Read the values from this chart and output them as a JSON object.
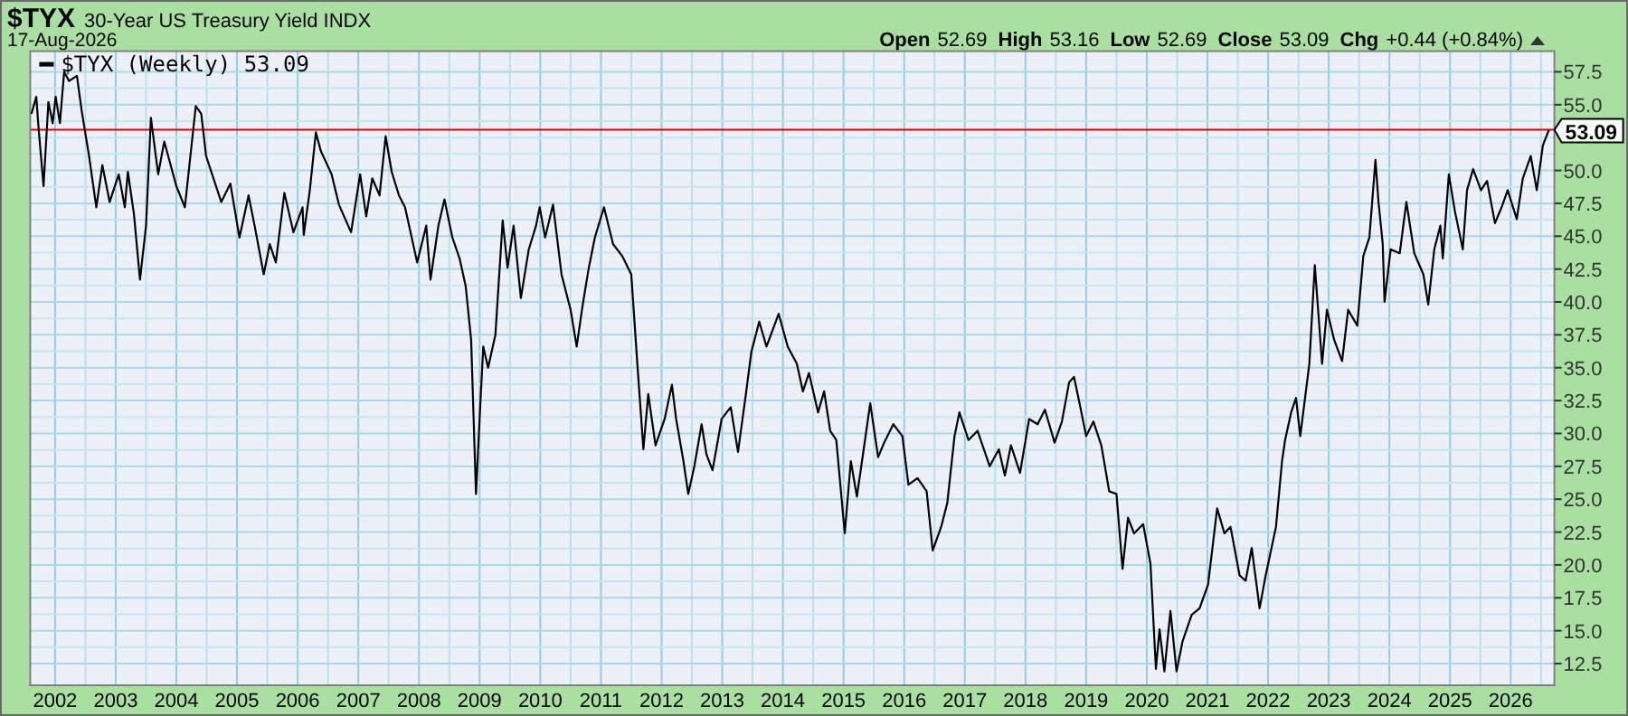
{
  "chart_data": {
    "type": "line",
    "title": "$TYX",
    "subtitle": "30-Year US Treasury Yield INDX",
    "annotations": [
      "17-Aug-2026",
      "Open",
      "52.69",
      "High",
      "53.16",
      "Low",
      "52.69",
      "Close",
      "53.09",
      "Chg",
      "+0.44 (+0.84%)"
    ],
    "legend": "top left",
    "grid": true,
    "xlim": [
      2001.59,
      2026.72
    ],
    "ylim": [
      10.85,
      59.07
    ],
    "xticks": [
      2002,
      {
        "value": 2002.5,
        "label": null
      },
      2003,
      {
        "value": 2003.5,
        "label": null
      },
      2004,
      {
        "value": 2004.5,
        "label": null
      },
      2005,
      {
        "value": 2005.5,
        "label": null
      },
      2006,
      {
        "value": 2006.5,
        "label": null
      },
      2007,
      {
        "value": 2007.5,
        "label": null
      },
      2008,
      {
        "value": 2008.5,
        "label": null
      },
      2009,
      {
        "value": 2009.5,
        "label": null
      },
      2010,
      {
        "value": 2010.5,
        "label": null
      },
      2011,
      {
        "value": 2011.5,
        "label": null
      },
      2012,
      {
        "value": 2012.5,
        "label": null
      },
      2013,
      {
        "value": 2013.5,
        "label": null
      },
      2014,
      {
        "value": 2014.5,
        "label": null
      },
      2015,
      {
        "value": 2015.5,
        "label": null
      },
      2016,
      {
        "value": 2016.5,
        "label": null
      },
      2017,
      {
        "value": 2017.5,
        "label": null
      },
      2018,
      {
        "value": 2018.5,
        "label": null
      },
      2019,
      {
        "value": 2019.5,
        "label": null
      },
      2020,
      {
        "value": 2020.5,
        "label": null
      },
      2021,
      {
        "value": 2021.5,
        "label": null
      },
      2022,
      {
        "value": 2022.5,
        "label": null
      },
      2023,
      {
        "value": 2023.5,
        "label": null
      },
      2024,
      {
        "value": 2024.5,
        "label": null
      },
      2025,
      {
        "value": 2025.5,
        "label": null
      },
      2026,
      {
        "value": 2026.5,
        "label": null
      }
    ],
    "yticks": [
      {
        "value": 12.5,
        "label": "12.5"
      },
      {
        "value": 13.75,
        "label": null
      },
      {
        "value": 15,
        "label": "15.0"
      },
      {
        "value": 16.25,
        "label": null
      },
      {
        "value": 17.5,
        "label": "17.5"
      },
      {
        "value": 18.75,
        "label": null
      },
      {
        "value": 20,
        "label": "20.0"
      },
      {
        "value": 21.25,
        "label": null
      },
      {
        "value": 22.5,
        "label": "22.5"
      },
      {
        "value": 23.75,
        "label": null
      },
      {
        "value": 25,
        "label": "25.0"
      },
      {
        "value": 26.25,
        "label": null
      },
      {
        "value": 27.5,
        "label": "27.5"
      },
      {
        "value": 28.75,
        "label": null
      },
      {
        "value": 30,
        "label": "30.0"
      },
      {
        "value": 31.25,
        "label": null
      },
      {
        "value": 32.5,
        "label": "32.5"
      },
      {
        "value": 33.75,
        "label": null
      },
      {
        "value": 35,
        "label": "35.0"
      },
      {
        "value": 36.25,
        "label": null
      },
      {
        "value": 37.5,
        "label": "37.5"
      },
      {
        "value": 38.75,
        "label": null
      },
      {
        "value": 40,
        "label": "40.0"
      },
      {
        "value": 41.25,
        "label": null
      },
      {
        "value": 42.5,
        "label": "42.5"
      },
      {
        "value": 43.75,
        "label": null
      },
      {
        "value": 45,
        "label": "45.0"
      },
      {
        "value": 46.25,
        "label": null
      },
      {
        "value": 47.5,
        "label": "47.5"
      },
      {
        "value": 48.75,
        "label": null
      },
      {
        "value": 50,
        "label": "50.0"
      },
      {
        "value": 51.25,
        "label": null
      },
      {
        "value": 52.5,
        "label": null
      },
      {
        "value": 53.75,
        "label": null
      },
      {
        "value": 55,
        "label": "55.0"
      },
      {
        "value": 56.25,
        "label": null
      },
      {
        "value": 57.5,
        "label": "57.5"
      }
    ],
    "ref_lines": [
      {
        "axis": "y",
        "value": 53.09,
        "label": "53.09",
        "color": "#e00000"
      }
    ],
    "series": [
      {
        "name": "$TYX (Weekly) 53.09",
        "color": "#000000",
        "x": [
          2001.61,
          2001.69,
          2001.73,
          2001.81,
          2001.89,
          2001.96,
          2002.01,
          2002.08,
          2002.15,
          2002.23,
          2002.36,
          2002.44,
          2002.56,
          2002.68,
          2002.78,
          2002.9,
          2003.05,
          2003.15,
          2003.2,
          2003.3,
          2003.4,
          2003.5,
          2003.58,
          2003.7,
          2003.8,
          2004.0,
          2004.14,
          2004.32,
          2004.41,
          2004.49,
          2004.64,
          2004.74,
          2004.89,
          2005.04,
          2005.19,
          2005.29,
          2005.44,
          2005.54,
          2005.64,
          2005.78,
          2005.93,
          2006.08,
          2006.1,
          2006.2,
          2006.3,
          2006.38,
          2006.56,
          2006.68,
          2006.88,
          2007.03,
          2007.13,
          2007.23,
          2007.35,
          2007.45,
          2007.55,
          2007.67,
          2007.77,
          2007.97,
          2008.12,
          2008.19,
          2008.32,
          2008.42,
          2008.55,
          2008.67,
          2008.77,
          2008.86,
          2008.94,
          2009.01,
          2009.06,
          2009.14,
          2009.26,
          2009.38,
          2009.46,
          2009.56,
          2009.68,
          2009.81,
          2009.93,
          2009.99,
          2010.08,
          2010.21,
          2010.35,
          2010.5,
          2010.6,
          2010.7,
          2010.8,
          2010.9,
          2011.05,
          2011.2,
          2011.35,
          2011.5,
          2011.6,
          2011.7,
          2011.78,
          2011.9,
          2012.05,
          2012.17,
          2012.24,
          2012.36,
          2012.44,
          2012.54,
          2012.66,
          2012.74,
          2012.84,
          2012.99,
          2013.14,
          2013.26,
          2013.39,
          2013.48,
          2013.61,
          2013.73,
          2013.93,
          2014.08,
          2014.23,
          2014.33,
          2014.43,
          2014.58,
          2014.68,
          2014.78,
          2014.88,
          2015.02,
          2015.12,
          2015.22,
          2015.32,
          2015.44,
          2015.57,
          2015.67,
          2015.82,
          2015.97,
          2016.07,
          2016.22,
          2016.37,
          2016.47,
          2016.61,
          2016.71,
          2016.83,
          2016.91,
          2017.06,
          2017.21,
          2017.41,
          2017.56,
          2017.66,
          2017.76,
          2017.91,
          2018.06,
          2018.2,
          2018.32,
          2018.48,
          2018.6,
          2018.72,
          2018.8,
          2018.9,
          2019.0,
          2019.12,
          2019.25,
          2019.38,
          2019.5,
          2019.6,
          2019.69,
          2019.79,
          2019.94,
          2020.06,
          2020.15,
          2020.21,
          2020.29,
          2020.39,
          2020.49,
          2020.59,
          2020.74,
          2020.87,
          2021.01,
          2021.16,
          2021.28,
          2021.38,
          2021.53,
          2021.63,
          2021.73,
          2021.86,
          2021.96,
          2022.13,
          2022.23,
          2022.28,
          2022.38,
          2022.46,
          2022.53,
          2022.68,
          2022.77,
          2022.89,
          2022.97,
          2023.09,
          2023.22,
          2023.32,
          2023.47,
          2023.57,
          2023.67,
          2023.77,
          2023.82,
          2023.89,
          2023.92,
          2024.02,
          2024.17,
          2024.28,
          2024.41,
          2024.56,
          2024.64,
          2024.74,
          2024.84,
          2024.88,
          2024.98,
          2025.08,
          2025.21,
          2025.28,
          2025.38,
          2025.51,
          2025.61,
          2025.74,
          2025.85,
          2025.95,
          2026.1,
          2026.2,
          2026.33,
          2026.43,
          2026.53,
          2026.63
        ],
        "values": [
          54.3,
          55.6,
          53.1,
          48.8,
          55.2,
          53.6,
          55.6,
          53.6,
          57.5,
          56.8,
          57.2,
          54.5,
          51.1,
          47.2,
          50.4,
          47.6,
          49.7,
          47.2,
          49.9,
          46.7,
          41.7,
          45.8,
          54.0,
          49.7,
          52.2,
          48.8,
          47.2,
          54.9,
          54.3,
          51.1,
          49.0,
          47.6,
          49.0,
          44.9,
          48.1,
          45.8,
          42.1,
          44.4,
          43.0,
          48.3,
          45.3,
          47.2,
          45.1,
          48.5,
          52.9,
          51.5,
          49.7,
          47.4,
          45.3,
          49.7,
          46.5,
          49.4,
          48.1,
          52.6,
          49.9,
          48.1,
          47.2,
          43.0,
          45.8,
          41.7,
          45.8,
          47.8,
          44.9,
          43.3,
          41.2,
          37.1,
          25.4,
          32.1,
          36.6,
          35.0,
          37.5,
          46.2,
          42.6,
          45.8,
          40.3,
          44.0,
          45.8,
          47.2,
          44.9,
          47.4,
          42.1,
          39.4,
          36.6,
          39.8,
          42.6,
          44.9,
          47.2,
          44.4,
          43.5,
          42.1,
          35.3,
          28.8,
          33.0,
          29.1,
          31.1,
          33.7,
          31.1,
          27.9,
          25.4,
          27.5,
          30.7,
          28.4,
          27.2,
          31.1,
          32.0,
          28.6,
          33.0,
          36.2,
          38.5,
          36.6,
          39.1,
          36.6,
          35.3,
          33.2,
          34.6,
          31.6,
          33.2,
          30.2,
          29.5,
          22.4,
          27.9,
          25.2,
          28.4,
          32.3,
          28.2,
          29.3,
          30.7,
          29.8,
          26.1,
          26.6,
          25.6,
          21.1,
          22.9,
          24.7,
          29.8,
          31.6,
          29.5,
          30.2,
          27.5,
          28.8,
          26.8,
          29.1,
          27.0,
          31.1,
          30.7,
          31.8,
          29.3,
          30.9,
          33.9,
          34.3,
          32.1,
          29.8,
          30.9,
          29.1,
          25.6,
          25.4,
          19.7,
          23.6,
          22.4,
          23.1,
          20.1,
          12.1,
          15.1,
          11.9,
          16.5,
          11.9,
          14.2,
          16.2,
          16.7,
          18.5,
          24.3,
          22.4,
          22.9,
          19.2,
          18.8,
          21.3,
          16.7,
          19.2,
          22.9,
          27.9,
          29.5,
          31.6,
          32.7,
          29.8,
          35.3,
          42.8,
          35.3,
          39.4,
          37.1,
          35.5,
          39.4,
          38.2,
          43.5,
          44.9,
          50.8,
          47.6,
          44.4,
          40.0,
          44.0,
          43.7,
          47.6,
          43.7,
          42.1,
          39.8,
          44.0,
          45.8,
          43.3,
          49.7,
          46.9,
          44.0,
          48.5,
          50.1,
          48.5,
          49.2,
          46.0,
          47.2,
          48.5,
          46.3,
          49.4,
          51.1,
          48.5,
          51.9,
          53.09
        ]
      }
    ]
  }
}
